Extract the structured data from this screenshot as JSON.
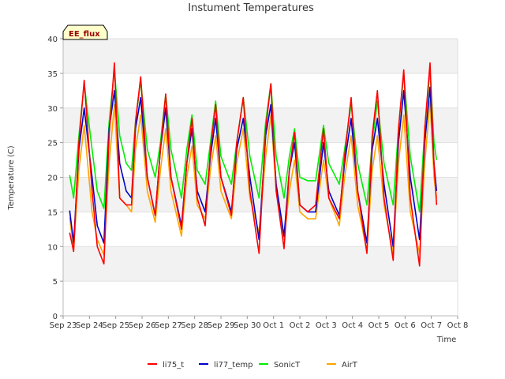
{
  "chart_data": {
    "type": "line",
    "title": "Instument Temperatures",
    "xlabel": "Time",
    "ylabel": "Temperature (C)",
    "badge": "EE_flux",
    "ylim": [
      0,
      40
    ],
    "yticks": [
      0,
      5,
      10,
      15,
      20,
      25,
      30,
      35,
      40
    ],
    "xlim": [
      0,
      15
    ],
    "xticks": [
      {
        "label": "Sep 23",
        "x": 0
      },
      {
        "label": "Sep 24",
        "x": 1
      },
      {
        "label": "Sep 25",
        "x": 2
      },
      {
        "label": "Sep 26",
        "x": 3
      },
      {
        "label": "Sep 27",
        "x": 4
      },
      {
        "label": "Sep 28",
        "x": 5
      },
      {
        "label": "Sep 29",
        "x": 6
      },
      {
        "label": "Sep 30",
        "x": 7
      },
      {
        "label": "Oct 1",
        "x": 8
      },
      {
        "label": "Oct 2",
        "x": 9
      },
      {
        "label": "Oct 3",
        "x": 10
      },
      {
        "label": "Oct 4",
        "x": 11
      },
      {
        "label": "Oct 5",
        "x": 12
      },
      {
        "label": "Oct 6",
        "x": 13
      },
      {
        "label": "Oct 7",
        "x": 14
      },
      {
        "label": "Oct 8",
        "x": 15
      }
    ],
    "grid": "horizontal bands",
    "legend_position": "bottom",
    "series": [
      {
        "name": "li75_t",
        "color": "#ff0000",
        "points": [
          [
            0.25,
            12
          ],
          [
            0.4,
            9.3
          ],
          [
            0.6,
            25
          ],
          [
            0.8,
            34
          ],
          [
            1.1,
            18
          ],
          [
            1.3,
            10
          ],
          [
            1.55,
            7.5
          ],
          [
            1.75,
            26
          ],
          [
            1.95,
            36.5
          ],
          [
            2.15,
            17
          ],
          [
            2.4,
            16
          ],
          [
            2.6,
            16
          ],
          [
            2.75,
            28
          ],
          [
            2.95,
            34.5
          ],
          [
            3.2,
            20
          ],
          [
            3.5,
            14.5
          ],
          [
            3.7,
            24
          ],
          [
            3.9,
            32
          ],
          [
            4.1,
            20
          ],
          [
            4.5,
            12.5
          ],
          [
            4.7,
            22
          ],
          [
            4.9,
            28.5
          ],
          [
            5.1,
            17
          ],
          [
            5.4,
            13
          ],
          [
            5.6,
            24
          ],
          [
            5.8,
            30.5
          ],
          [
            6.0,
            20
          ],
          [
            6.4,
            14.5
          ],
          [
            6.6,
            25
          ],
          [
            6.85,
            31.5
          ],
          [
            7.1,
            18
          ],
          [
            7.45,
            9
          ],
          [
            7.7,
            27
          ],
          [
            7.9,
            33.5
          ],
          [
            8.1,
            18
          ],
          [
            8.4,
            9.7
          ],
          [
            8.6,
            21
          ],
          [
            8.8,
            26.5
          ],
          [
            9.0,
            16
          ],
          [
            9.3,
            15
          ],
          [
            9.6,
            16
          ],
          [
            9.9,
            27
          ],
          [
            10.1,
            17
          ],
          [
            10.5,
            14
          ],
          [
            10.7,
            23
          ],
          [
            10.95,
            31.5
          ],
          [
            11.2,
            18
          ],
          [
            11.55,
            9
          ],
          [
            11.75,
            26
          ],
          [
            11.95,
            32.5
          ],
          [
            12.2,
            17
          ],
          [
            12.55,
            8
          ],
          [
            12.75,
            27
          ],
          [
            12.95,
            35.5
          ],
          [
            13.2,
            17
          ],
          [
            13.55,
            7.2
          ],
          [
            13.75,
            27
          ],
          [
            13.95,
            36.5
          ],
          [
            14.1,
            22
          ],
          [
            14.2,
            16
          ]
        ]
      },
      {
        "name": "li77_temp",
        "color": "#0000cc",
        "points": [
          [
            0.25,
            15.2
          ],
          [
            0.4,
            10.5
          ],
          [
            0.6,
            24
          ],
          [
            0.8,
            30
          ],
          [
            1.1,
            20
          ],
          [
            1.3,
            13
          ],
          [
            1.55,
            10.5
          ],
          [
            1.75,
            27
          ],
          [
            1.95,
            32.5
          ],
          [
            2.15,
            22
          ],
          [
            2.4,
            18
          ],
          [
            2.6,
            17
          ],
          [
            2.75,
            27
          ],
          [
            2.95,
            31.5
          ],
          [
            3.2,
            20
          ],
          [
            3.5,
            14.5
          ],
          [
            3.7,
            24
          ],
          [
            3.9,
            30
          ],
          [
            4.1,
            20
          ],
          [
            4.5,
            13
          ],
          [
            4.7,
            22
          ],
          [
            4.9,
            27
          ],
          [
            5.1,
            18
          ],
          [
            5.4,
            15
          ],
          [
            5.6,
            23
          ],
          [
            5.8,
            28.5
          ],
          [
            6.0,
            20
          ],
          [
            6.4,
            15
          ],
          [
            6.6,
            24
          ],
          [
            6.85,
            28.5
          ],
          [
            7.1,
            20
          ],
          [
            7.45,
            11
          ],
          [
            7.7,
            26
          ],
          [
            7.9,
            30.5
          ],
          [
            8.1,
            19
          ],
          [
            8.4,
            11.5
          ],
          [
            8.6,
            21
          ],
          [
            8.8,
            25
          ],
          [
            9.0,
            16
          ],
          [
            9.3,
            15
          ],
          [
            9.6,
            15
          ],
          [
            9.9,
            25
          ],
          [
            10.1,
            18
          ],
          [
            10.5,
            14.5
          ],
          [
            10.7,
            22
          ],
          [
            10.95,
            28.5
          ],
          [
            11.2,
            18
          ],
          [
            11.55,
            10.5
          ],
          [
            11.75,
            24
          ],
          [
            11.95,
            28.5
          ],
          [
            12.2,
            19
          ],
          [
            12.55,
            10
          ],
          [
            12.75,
            25
          ],
          [
            12.95,
            32.5
          ],
          [
            13.2,
            20
          ],
          [
            13.55,
            11
          ],
          [
            13.75,
            25
          ],
          [
            13.95,
            33
          ],
          [
            14.1,
            22
          ],
          [
            14.2,
            18
          ]
        ]
      },
      {
        "name": "SonicT",
        "color": "#00ee00",
        "points": [
          [
            0.25,
            20.3
          ],
          [
            0.4,
            17
          ],
          [
            0.6,
            26
          ],
          [
            0.8,
            33.5
          ],
          [
            1.1,
            24
          ],
          [
            1.3,
            18
          ],
          [
            1.55,
            15.5
          ],
          [
            1.75,
            28
          ],
          [
            1.95,
            35.5
          ],
          [
            2.15,
            26
          ],
          [
            2.4,
            22
          ],
          [
            2.6,
            21
          ],
          [
            2.75,
            28
          ],
          [
            2.95,
            34
          ],
          [
            3.2,
            24
          ],
          [
            3.5,
            20
          ],
          [
            3.7,
            25
          ],
          [
            3.9,
            32
          ],
          [
            4.1,
            24
          ],
          [
            4.5,
            17
          ],
          [
            4.7,
            24
          ],
          [
            4.9,
            29
          ],
          [
            5.1,
            21
          ],
          [
            5.4,
            19
          ],
          [
            5.6,
            25
          ],
          [
            5.8,
            31
          ],
          [
            6.0,
            23
          ],
          [
            6.4,
            19
          ],
          [
            6.6,
            25
          ],
          [
            6.85,
            31.5
          ],
          [
            7.1,
            23
          ],
          [
            7.45,
            17
          ],
          [
            7.7,
            28
          ],
          [
            7.9,
            33.5
          ],
          [
            8.1,
            23
          ],
          [
            8.4,
            17
          ],
          [
            8.6,
            23
          ],
          [
            8.8,
            27
          ],
          [
            9.0,
            20
          ],
          [
            9.3,
            19.5
          ],
          [
            9.6,
            19.5
          ],
          [
            9.9,
            27.5
          ],
          [
            10.1,
            22
          ],
          [
            10.5,
            19
          ],
          [
            10.7,
            24
          ],
          [
            10.95,
            30.5
          ],
          [
            11.2,
            22
          ],
          [
            11.55,
            16
          ],
          [
            11.75,
            25
          ],
          [
            11.95,
            31
          ],
          [
            12.2,
            22
          ],
          [
            12.55,
            16
          ],
          [
            12.75,
            27
          ],
          [
            12.95,
            35
          ],
          [
            13.2,
            23
          ],
          [
            13.55,
            15
          ],
          [
            13.75,
            27
          ],
          [
            13.95,
            35.5
          ],
          [
            14.1,
            25
          ],
          [
            14.2,
            22.5
          ]
        ]
      },
      {
        "name": "AirT",
        "color": "#ffa500",
        "points": [
          [
            0.25,
            14.2
          ],
          [
            0.4,
            9.5
          ],
          [
            0.6,
            21
          ],
          [
            0.8,
            27.5
          ],
          [
            1.1,
            15
          ],
          [
            1.3,
            11
          ],
          [
            1.55,
            8.8
          ],
          [
            1.75,
            22
          ],
          [
            1.95,
            30.5
          ],
          [
            2.15,
            17
          ],
          [
            2.4,
            16
          ],
          [
            2.6,
            15
          ],
          [
            2.75,
            24
          ],
          [
            2.95,
            29
          ],
          [
            3.2,
            18
          ],
          [
            3.5,
            13.5
          ],
          [
            3.7,
            21
          ],
          [
            3.9,
            27
          ],
          [
            4.1,
            18
          ],
          [
            4.5,
            11.5
          ],
          [
            4.7,
            20
          ],
          [
            4.9,
            24.5
          ],
          [
            5.1,
            16
          ],
          [
            5.4,
            14
          ],
          [
            5.6,
            21
          ],
          [
            5.8,
            26
          ],
          [
            6.0,
            18
          ],
          [
            6.4,
            14
          ],
          [
            6.6,
            22
          ],
          [
            6.85,
            27
          ],
          [
            7.1,
            17
          ],
          [
            7.45,
            12
          ],
          [
            7.7,
            23
          ],
          [
            7.9,
            29
          ],
          [
            8.1,
            18
          ],
          [
            8.4,
            11
          ],
          [
            8.6,
            18
          ],
          [
            8.8,
            22.5
          ],
          [
            9.0,
            15
          ],
          [
            9.3,
            14
          ],
          [
            9.6,
            14
          ],
          [
            9.9,
            22.5
          ],
          [
            10.1,
            17
          ],
          [
            10.5,
            13
          ],
          [
            10.7,
            20
          ],
          [
            10.95,
            26
          ],
          [
            11.2,
            16
          ],
          [
            11.55,
            9.3
          ],
          [
            11.75,
            21
          ],
          [
            11.95,
            26
          ],
          [
            12.2,
            16
          ],
          [
            12.55,
            9
          ],
          [
            12.75,
            22
          ],
          [
            12.95,
            29
          ],
          [
            13.2,
            15
          ],
          [
            13.55,
            9
          ],
          [
            13.75,
            22
          ],
          [
            13.95,
            31
          ],
          [
            14.1,
            20
          ],
          [
            14.2,
            17
          ]
        ]
      }
    ]
  }
}
